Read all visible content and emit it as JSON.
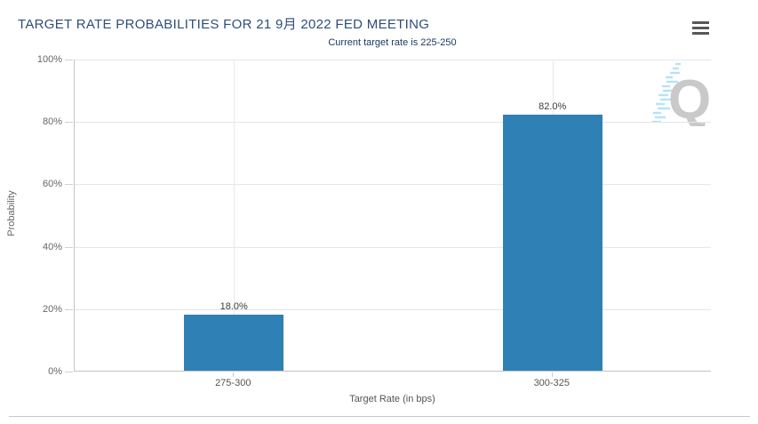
{
  "header": {
    "title": "TARGET RATE PROBABILITIES FOR 21 9月 2022 FED MEETING",
    "menu_icon": "hamburger-icon"
  },
  "watermark": {
    "letter": "Q",
    "letter_color": "#c9c9c9",
    "dash_color": "#b5e2f8"
  },
  "colors": {
    "title": "#2e4e7c",
    "subtitle": "#1c3a63",
    "bar": "#2f81b5",
    "axis_text": "#666666",
    "value_label": "#3c3c3c",
    "gridline": "#e6e6e6",
    "axis_line": "#c3c3c3",
    "menu_icon": "#58585a",
    "divider": "#c8c8c8"
  },
  "chart_data": {
    "type": "bar",
    "title": "TARGET RATE PROBABILITIES FOR 21 9月 2022 FED MEETING",
    "subtitle": "Current target rate is 225-250",
    "categories": [
      "275-300",
      "300-325"
    ],
    "values": [
      18.0,
      82.0
    ],
    "value_labels": [
      "18.0%",
      "82.0%"
    ],
    "xlabel": "Target Rate (in bps)",
    "ylabel": "Probability",
    "ylim": [
      0,
      100
    ],
    "yticks": [
      0,
      20,
      40,
      60,
      80,
      100
    ],
    "ytick_labels": [
      "0%",
      "20%",
      "40%",
      "60%",
      "80%",
      "100%"
    ],
    "grid": true,
    "legend": false,
    "bar_color": "#2f81b5"
  }
}
